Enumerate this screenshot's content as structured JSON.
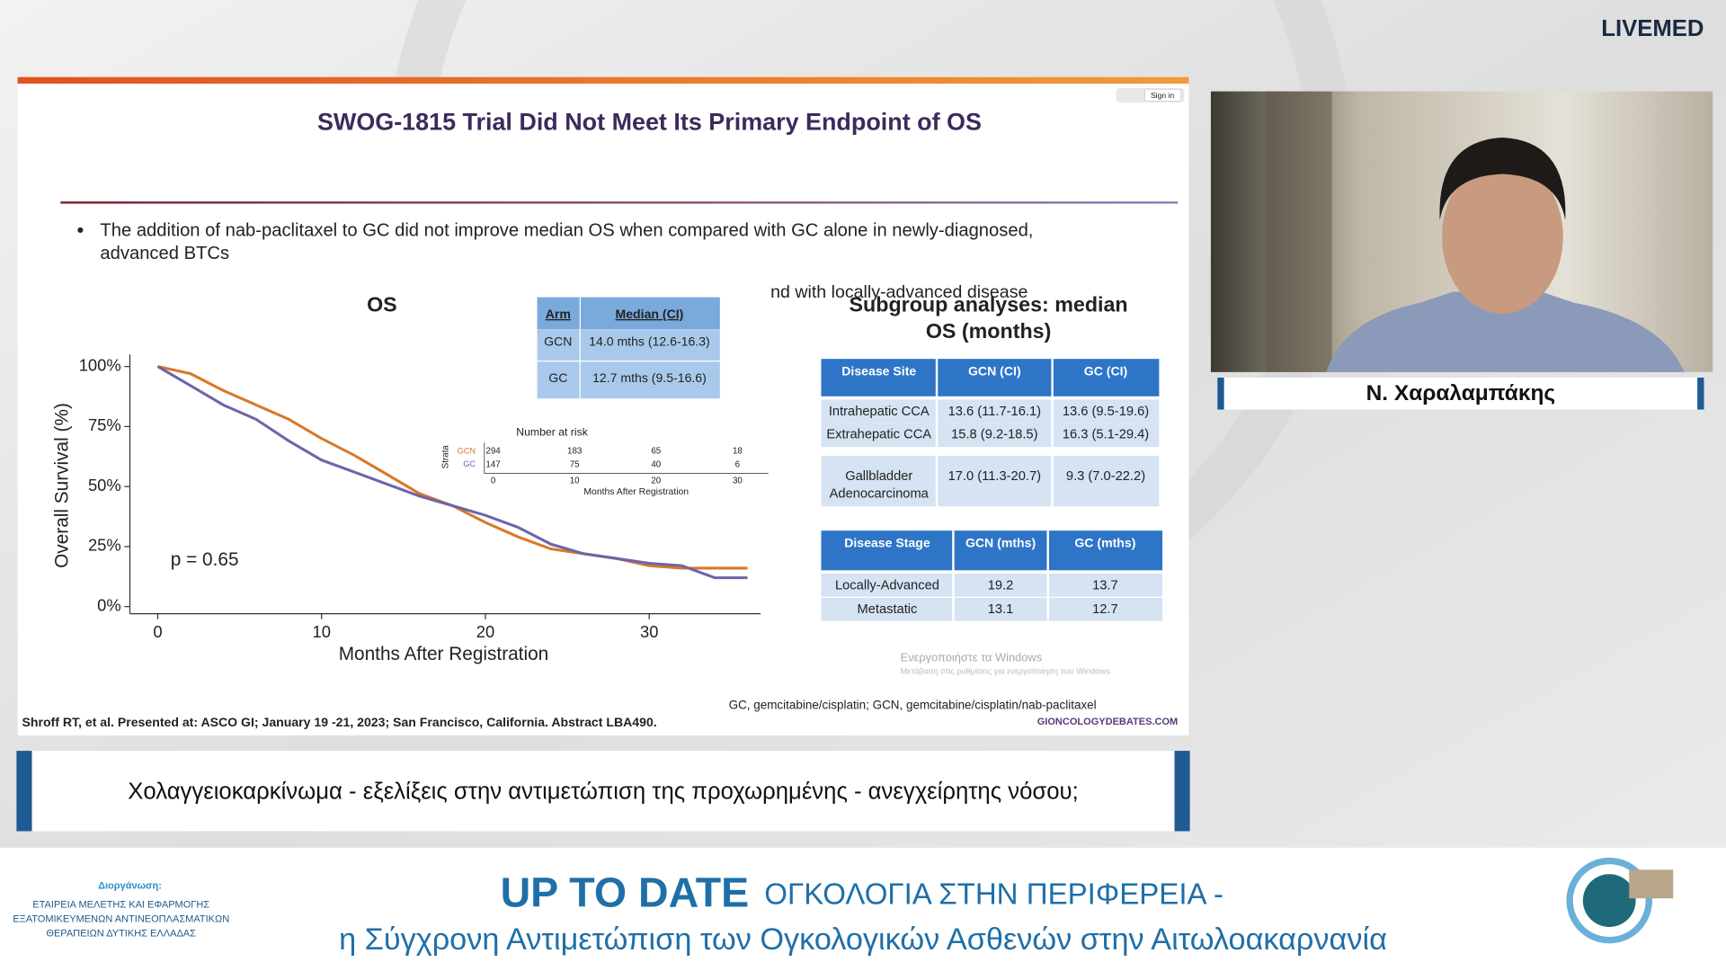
{
  "header": {
    "logo": "LIVEMED"
  },
  "slide": {
    "title": "SWOG-1815 Trial Did Not Meet Its Primary Endpoint of OS",
    "bullet_lines": [
      "The addition of nab-paclitaxel to GC did not improve median OS when compared with GC alone in newly-diagnosed,",
      "advanced BTCs"
    ],
    "overlap_text": "nd with locally-advanced disease",
    "sign_in": "Sign in",
    "reference": "Shroff RT, et al. Presented at: ASCO GI; January 19 -21, 2023; San Francisco, California. Abstract LBA490.",
    "footnote": "GC, gemcitabine/cisplatin; GCN, gemcitabine/cisplatin/nab-paclitaxel",
    "site": "GIONCOLOGYDEBATES.COM",
    "watermark": [
      "Ενεργοποιήστε τα Windows",
      "Μετάβαση στις ρυθμίσεις για ενεργοποίηση των Windows."
    ]
  },
  "chart_data": {
    "type": "line",
    "title": "OS",
    "x_label": "Months After Registration",
    "y_label": "Overall Survival (%)",
    "annotation": "p = 0.65",
    "x": [
      0,
      2,
      4,
      6,
      8,
      10,
      12,
      14,
      16,
      18,
      20,
      22,
      24,
      26,
      28,
      30,
      32,
      34,
      36
    ],
    "series": [
      {
        "name": "GCN",
        "color": "#d9782a",
        "values": [
          100,
          97,
          90,
          84,
          78,
          70,
          63,
          55,
          47,
          42,
          35,
          29,
          24,
          22,
          20,
          17,
          16,
          16,
          16
        ]
      },
      {
        "name": "GC",
        "color": "#6f64a8",
        "values": [
          100,
          92,
          84,
          78,
          69,
          61,
          56,
          51,
          46,
          42,
          38,
          33,
          26,
          22,
          20,
          18,
          17,
          12,
          12
        ]
      }
    ],
    "xlim": [
      -1.7,
      36.8
    ],
    "ylim": [
      -3,
      105
    ],
    "xticks": [
      0,
      10,
      20,
      30
    ],
    "yticks": [
      {
        "value": 0,
        "label": "0%"
      },
      {
        "value": 25,
        "label": "25%"
      },
      {
        "value": 50,
        "label": "50%"
      },
      {
        "value": 75,
        "label": "75%"
      },
      {
        "value": 100,
        "label": "100%"
      }
    ]
  },
  "median_table": {
    "header": [
      "Arm",
      "Median (CI)"
    ],
    "rows": [
      [
        "GCN",
        "14.0 mths (12.6-16.3)"
      ],
      [
        "GC",
        "12.7 mths (9.5-16.6)"
      ]
    ]
  },
  "risk_table": {
    "title": "Number at risk",
    "strata_label": "Strata",
    "rows": [
      {
        "name": "GCN",
        "values": [
          "294",
          "183",
          "65",
          "18"
        ]
      },
      {
        "name": "GC",
        "values": [
          "147",
          "75",
          "40",
          "6"
        ]
      }
    ],
    "xticks": [
      "0",
      "10",
      "20",
      "30"
    ],
    "x_label": "Months After Registration"
  },
  "subgroup": {
    "title_lines": [
      "Subgroup analyses: median",
      "OS (months)"
    ],
    "site_table": {
      "header": [
        "Disease Site",
        "GCN (CI)",
        "GC (CI)"
      ],
      "rows": [
        [
          [
            "Intrahepatic CCA"
          ],
          "13.6 (11.7-16.1)",
          "13.6 (9.5-19.6)"
        ],
        [
          [
            "Extrahepatic CCA"
          ],
          "15.8 (9.2-18.5)",
          "16.3 (5.1-29.4)"
        ],
        [
          [
            "Gallbladder",
            "Adenocarcinoma"
          ],
          "17.0 (11.3-20.7)",
          "9.3 (7.0-22.2)"
        ]
      ]
    },
    "stage_table": {
      "header": [
        "Disease Stage",
        "GCN (mths)",
        "GC (mths)"
      ],
      "rows": [
        [
          "Locally-Advanced",
          "19.2",
          "13.7"
        ],
        [
          "Metastatic",
          "13.1",
          "12.7"
        ]
      ]
    }
  },
  "speaker": {
    "name": "Ν. Χαραλαμπάκης"
  },
  "banner": {
    "text": "Χολαγγειοκαρκίνωμα - εξελίξεις στην αντιμετώπιση της προχωρημένης - ανεγχείρητης νόσου;"
  },
  "footer": {
    "organizer_label": "Διοργάνωση:",
    "organizer_lines": [
      "ΕΤΑΙΡΕΙΑ ΜΕΛΕΤΗΣ ΚΑΙ ΕΦΑΡΜΟΓΗΣ",
      "ΕΞΑΤΟΜΙΚΕΥΜΕΝΩΝ ΑΝΤΙΝΕΟΠΛΑΣΜΑΤΙΚΩΝ",
      "ΘΕΡΑΠΕΙΩΝ ΔΥΤΙΚΗΣ ΕΛΛΑΔΑΣ"
    ],
    "headline_bold": "UP TO DATE",
    "headline_rest": "ΟΓΚΟΛΟΓΙΑ ΣΤΗΝ ΠΕΡΙΦΕΡΕΙΑ -",
    "subline": "η Σύγχρονη Αντιμετώπιση των Ογκολογικών Ασθενών στην Αιτωλοακαρνανία"
  }
}
